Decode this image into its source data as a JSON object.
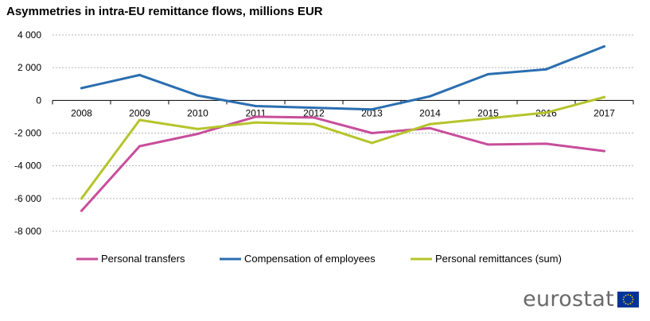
{
  "chart_data": {
    "type": "line",
    "title": "Asymmetries in intra-EU remittance flows, millions EUR",
    "xlabel": "",
    "ylabel": "",
    "categories": [
      "2008",
      "2009",
      "2010",
      "2011",
      "2012",
      "2013",
      "2014",
      "2015",
      "2016",
      "2017"
    ],
    "ylim": [
      -8000,
      4000
    ],
    "yticks": [
      4000,
      2000,
      0,
      -2000,
      -4000,
      -6000,
      -8000
    ],
    "ytick_labels": [
      "4 000",
      "2 000",
      "0",
      "-2 000",
      "-4 000",
      "-6 000",
      "-8 000"
    ],
    "grid": "horizontal dashed",
    "legend_position": "bottom",
    "series": [
      {
        "name": "Personal transfers",
        "color": "#c84e9b",
        "values": [
          -6750,
          -2800,
          -2050,
          -1000,
          -1050,
          -2000,
          -1700,
          -2700,
          -2650,
          -3100
        ]
      },
      {
        "name": "Compensation of employees",
        "color": "#2a6eb0",
        "values": [
          750,
          1550,
          300,
          -350,
          -450,
          -550,
          250,
          1600,
          1900,
          3300
        ]
      },
      {
        "name": "Personal remittances (sum)",
        "color": "#b5c42a",
        "values": [
          -6000,
          -1200,
          -1750,
          -1350,
          -1450,
          -2600,
          -1450,
          -1100,
          -750,
          200
        ]
      }
    ]
  },
  "branding": {
    "logo_text": "eurostat",
    "flag_icon": "eu-flag-icon"
  }
}
